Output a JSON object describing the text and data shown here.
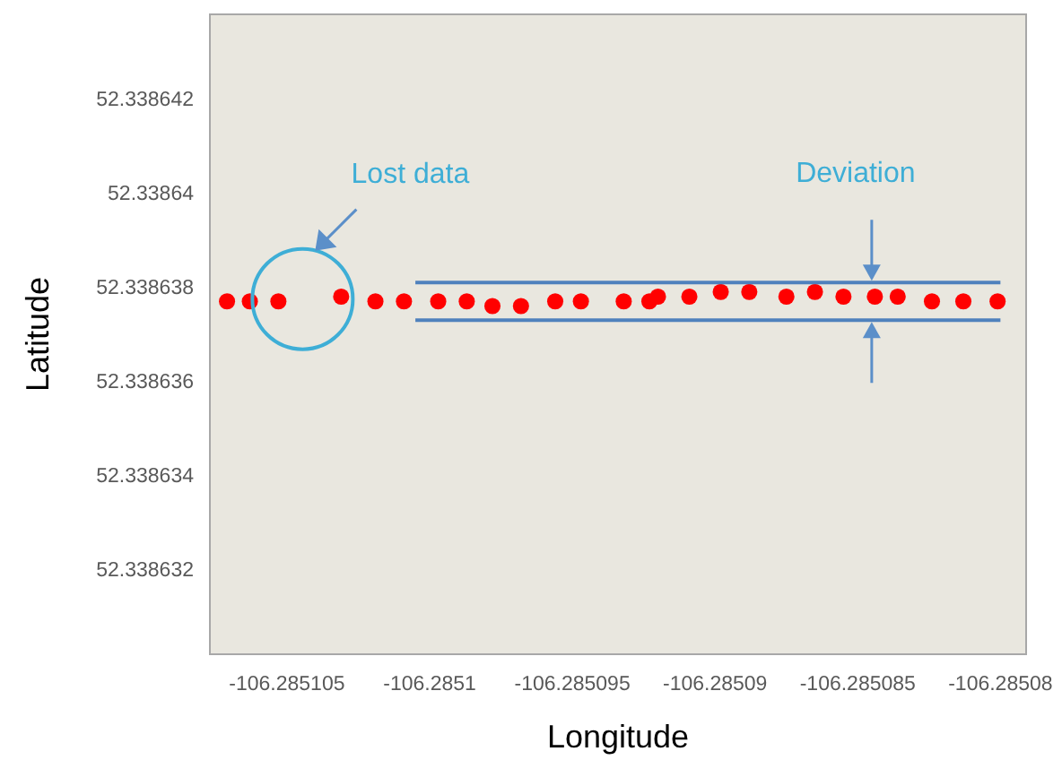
{
  "chart_data": {
    "type": "scatter",
    "xlabel": "Longitude",
    "ylabel": "Latitude",
    "xlim": [
      -106.2851077,
      -106.2850791
    ],
    "ylim": [
      52.3386302,
      52.3386438
    ],
    "xticks": [
      -106.285105,
      -106.2851,
      -106.285095,
      -106.28509,
      -106.285085,
      -106.28508
    ],
    "yticks": [
      52.338632,
      52.338634,
      52.338636,
      52.338638,
      52.33864,
      52.338642
    ],
    "series": [
      {
        "marker": "circle",
        "color": "#ff0000",
        "x": [
          -106.2851071,
          -106.2851063,
          -106.2851053,
          -106.2851031,
          -106.2851019,
          -106.2851009,
          -106.2850997,
          -106.2850987,
          -106.2850978,
          -106.2850968,
          -106.2850956,
          -106.2850947,
          -106.2850932,
          -106.2850923,
          -106.285092,
          -106.2850909,
          -106.2850898,
          -106.2850888,
          -106.2850875,
          -106.2850865,
          -106.2850855,
          -106.2850844,
          -106.2850836,
          -106.2850824,
          -106.2850813,
          -106.2850801
        ],
        "values": [
          52.3386377,
          52.3386377,
          52.3386377,
          52.3386378,
          52.3386377,
          52.3386377,
          52.3386377,
          52.3386377,
          52.3386376,
          52.3386376,
          52.3386377,
          52.3386377,
          52.3386377,
          52.3386377,
          52.3386378,
          52.3386378,
          52.3386379,
          52.3386379,
          52.3386378,
          52.3386379,
          52.3386378,
          52.3386378,
          52.3386378,
          52.3386377,
          52.3386377,
          52.3386377
        ]
      },
      {
        "type": "line",
        "color": "#4f81bd",
        "x": [
          -106.2851005,
          -106.28508
        ],
        "values": [
          52.3386381,
          52.3386381
        ]
      },
      {
        "type": "line",
        "color": "#4f81bd",
        "x": [
          -106.2851005,
          -106.28508
        ],
        "values": [
          52.3386373,
          52.3386373
        ]
      }
    ],
    "annotations": [
      "Lost data",
      "Deviation"
    ]
  }
}
